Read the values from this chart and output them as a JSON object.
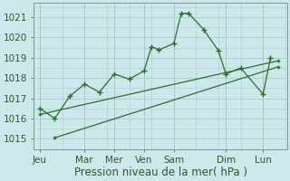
{
  "background_color": "#cce8ea",
  "grid_color": "#aacccc",
  "line_color": "#2d6e2d",
  "x_labels": [
    "Jeu",
    "Mar",
    "Mer",
    "Ven",
    "Sam",
    "Dim",
    "Lun"
  ],
  "xlabel": "Pression niveau de la mer( hPa )",
  "ylim": [
    1014.5,
    1021.7
  ],
  "yticks": [
    1015,
    1016,
    1017,
    1018,
    1019,
    1020,
    1021
  ],
  "main_x": [
    0.0,
    0.5,
    1.0,
    1.5,
    2.0,
    2.5,
    3.0,
    3.5,
    3.75,
    4.0,
    4.5,
    4.75,
    5.0,
    5.5,
    6.0,
    6.25,
    6.75,
    7.5,
    7.75
  ],
  "main_y": [
    1016.5,
    1016.0,
    1017.1,
    1017.7,
    1017.3,
    1018.2,
    1017.95,
    1018.35,
    1019.55,
    1019.4,
    1019.7,
    1021.2,
    1021.2,
    1020.4,
    1019.35,
    1018.2,
    1018.5,
    1017.2,
    1019.0
  ],
  "trend1_x": [
    0.0,
    8.0
  ],
  "trend1_y": [
    1016.2,
    1018.85
  ],
  "trend2_x": [
    0.5,
    8.0
  ],
  "trend2_y": [
    1015.05,
    1018.55
  ],
  "x_tick_positions": [
    0.0,
    1.5,
    2.5,
    3.5,
    4.5,
    6.25,
    7.5
  ],
  "xlim": [
    -0.2,
    8.3
  ],
  "figsize": [
    3.2,
    2.0
  ],
  "dpi": 100,
  "xlabel_fontsize": 8.5,
  "tick_fontsize": 7.5
}
